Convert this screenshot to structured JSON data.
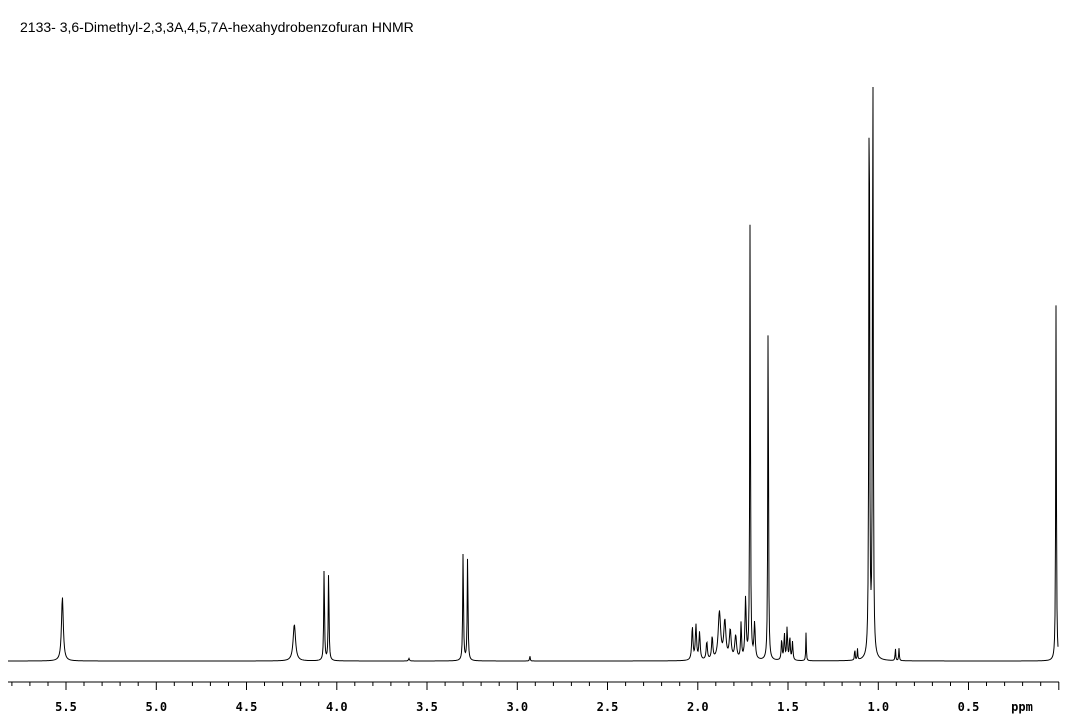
{
  "chart_data": {
    "type": "line",
    "title": "2133- 3,6-Dimethyl-2,3,3A,4,5,7A-hexahydrobenzofuran HNMR",
    "xlabel": "ppm",
    "ylabel": "",
    "xlim": [
      5.8,
      -0.05
    ],
    "ylim": [
      0,
      100
    ],
    "axis_reversed": true,
    "grid": false,
    "tick_labels": [
      "5.5",
      "5.0",
      "4.5",
      "4.0",
      "3.5",
      "3.0",
      "2.5",
      "2.0",
      "1.5",
      "1.0",
      "0.5"
    ],
    "tick_values": [
      5.5,
      5.0,
      4.5,
      4.0,
      3.5,
      3.0,
      2.5,
      2.0,
      1.5,
      1.0,
      0.5
    ],
    "minor_tick_step": 0.1,
    "series": [
      {
        "peaks": [
          {
            "ppm": 5.52,
            "height": 9.8,
            "width": 0.006
          },
          {
            "ppm": 4.235,
            "height": 5.6,
            "width": 0.008
          },
          {
            "ppm": 4.07,
            "height": 14.5,
            "width": 0.0025
          },
          {
            "ppm": 4.045,
            "height": 14.0,
            "width": 0.0025
          },
          {
            "ppm": 3.3,
            "height": 17.0,
            "width": 0.0025
          },
          {
            "ppm": 3.275,
            "height": 16.4,
            "width": 0.0025
          },
          {
            "ppm": 3.6,
            "height": 0.4,
            "width": 0.003
          },
          {
            "ppm": 2.93,
            "height": 0.8,
            "width": 0.002
          },
          {
            "ppm": 2.03,
            "height": 5.1,
            "width": 0.004
          },
          {
            "ppm": 2.01,
            "height": 5.3,
            "width": 0.004
          },
          {
            "ppm": 1.99,
            "height": 4.2,
            "width": 0.004
          },
          {
            "ppm": 1.95,
            "height": 2.8,
            "width": 0.004
          },
          {
            "ppm": 1.92,
            "height": 3.5,
            "width": 0.004
          },
          {
            "ppm": 1.88,
            "height": 7.3,
            "width": 0.008
          },
          {
            "ppm": 1.85,
            "height": 5.8,
            "width": 0.007
          },
          {
            "ppm": 1.82,
            "height": 4.4,
            "width": 0.006
          },
          {
            "ppm": 1.79,
            "height": 3.6,
            "width": 0.006
          },
          {
            "ppm": 1.76,
            "height": 5.5,
            "width": 0.003
          },
          {
            "ppm": 1.735,
            "height": 9.3,
            "width": 0.004
          },
          {
            "ppm": 1.71,
            "height": 70.0,
            "width": 0.0022
          },
          {
            "ppm": 1.685,
            "height": 5.5,
            "width": 0.004
          },
          {
            "ppm": 1.61,
            "height": 56.3,
            "width": 0.0022
          },
          {
            "ppm": 1.535,
            "height": 3.2,
            "width": 0.003
          },
          {
            "ppm": 1.52,
            "height": 4.0,
            "width": 0.003
          },
          {
            "ppm": 1.505,
            "height": 5.0,
            "width": 0.003
          },
          {
            "ppm": 1.49,
            "height": 3.6,
            "width": 0.003
          },
          {
            "ppm": 1.475,
            "height": 2.8,
            "width": 0.003
          },
          {
            "ppm": 1.4,
            "height": 4.4,
            "width": 0.0018
          },
          {
            "ppm": 1.13,
            "height": 2.0,
            "width": 0.0018
          },
          {
            "ppm": 1.115,
            "height": 1.7,
            "width": 0.0018
          },
          {
            "ppm": 1.05,
            "height": 100.0,
            "width": 0.0024
          },
          {
            "ppm": 1.03,
            "height": 99.0,
            "width": 0.0024
          },
          {
            "ppm": 0.905,
            "height": 1.9,
            "width": 0.002
          },
          {
            "ppm": 0.885,
            "height": 1.9,
            "width": 0.002
          },
          {
            "ppm": 0.015,
            "height": 55.0,
            "width": 0.0022
          }
        ]
      }
    ]
  }
}
